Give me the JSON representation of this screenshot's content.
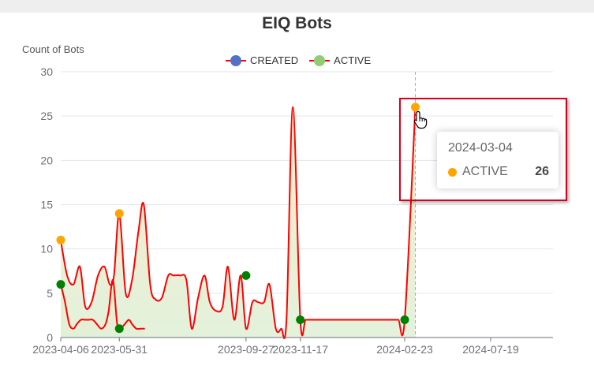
{
  "chart_data": {
    "type": "line",
    "title": "EIQ Bots",
    "ylabel": "Count of Bots",
    "ylim": [
      0,
      30
    ],
    "yticks": [
      "0",
      "5",
      "10",
      "15",
      "20",
      "25",
      "30"
    ],
    "xticks": [
      "2023-04-06",
      "2023-05-31",
      "2023-09-27",
      "2023-11-17",
      "2024-02-23",
      "2024-07-19"
    ],
    "grid": true,
    "legend_position": "top-center",
    "series": [
      {
        "name": "CREATED",
        "color": "#5470c6",
        "line_color": "#ff0000",
        "fill": [
          "#f5eac4",
          "#e0f0d8"
        ],
        "x": [
          "2023-04-06",
          "2023-04-10",
          "2023-04-14",
          "2023-04-18",
          "2023-04-21",
          "2023-04-25",
          "2023-04-29",
          "2023-05-02",
          "2023-05-06",
          "2023-05-10",
          "2023-05-14",
          "2023-05-18",
          "2023-05-21",
          "2023-05-25",
          "2023-05-29",
          "2023-06-01",
          "2023-06-05",
          "2023-06-09",
          "2023-06-12",
          "2023-06-16",
          "2023-06-20",
          "2023-06-24"
        ],
        "values": [
          6,
          4,
          1.5,
          1,
          1.5,
          2,
          2,
          2,
          2,
          1.5,
          1,
          1.5,
          3,
          6.5,
          1.5,
          1,
          1.5,
          2,
          1.5,
          1,
          1,
          1
        ]
      },
      {
        "name": "ACTIVE",
        "color": "#91cc75",
        "line_color": "#ff0000",
        "fill": [
          "#f5eac4",
          "#e0f0d8"
        ],
        "x": [
          "2023-04-06",
          "2023-04-12",
          "2023-04-18",
          "2023-04-24",
          "2023-04-29",
          "2023-05-05",
          "2023-05-11",
          "2023-05-17",
          "2023-05-22",
          "2023-05-26",
          "2023-05-31",
          "2023-06-06",
          "2023-06-12",
          "2023-06-18",
          "2023-06-23",
          "2023-06-29",
          "2023-07-04",
          "2023-07-10",
          "2023-07-16",
          "2023-07-21",
          "2023-07-27",
          "2023-08-02",
          "2023-08-07",
          "2023-08-13",
          "2023-08-19",
          "2023-08-24",
          "2023-08-30",
          "2023-09-05",
          "2023-09-10",
          "2023-09-16",
          "2023-09-22",
          "2023-09-27",
          "2023-10-03",
          "2023-10-08",
          "2023-10-14",
          "2023-10-19",
          "2023-10-25",
          "2023-10-30",
          "2023-11-04",
          "2023-11-10",
          "2023-11-17",
          "2023-11-22",
          "2023-11-28",
          "2023-12-03",
          "2023-12-09",
          "2023-12-14",
          "2023-12-20",
          "2023-12-25",
          "2023-12-31",
          "2024-01-06",
          "2024-01-12",
          "2024-01-18",
          "2024-01-24",
          "2024-01-30",
          "2024-02-05",
          "2024-02-11",
          "2024-02-17",
          "2024-02-23",
          "2024-03-04"
        ],
        "values": [
          11,
          7,
          6,
          8,
          3.5,
          4,
          7,
          8,
          6,
          7,
          14,
          5,
          6.5,
          12,
          15,
          6,
          4.3,
          4.5,
          7,
          7,
          7,
          6.5,
          1,
          4.5,
          7,
          4,
          3,
          3.5,
          8,
          2,
          7,
          1,
          4,
          4,
          4,
          6,
          1,
          1,
          2,
          26,
          2,
          2,
          2,
          2,
          2,
          2,
          2,
          2,
          2,
          2,
          2,
          2,
          2,
          2,
          2,
          2,
          2,
          2,
          26
        ],
        "point_labels": [
          {
            "x": "2023-04-06",
            "y": 11,
            "color": "#ffa500"
          },
          {
            "x": "2023-05-31",
            "y": 14,
            "color": "#ffa500"
          },
          {
            "x": "2024-03-04",
            "y": 26,
            "color": "#ffa500"
          }
        ]
      }
    ],
    "markers": [
      {
        "x": "2023-04-06",
        "y": 6,
        "color": "#008000"
      },
      {
        "x": "2023-05-31",
        "y": 1,
        "color": "#008000"
      },
      {
        "x": "2023-09-27",
        "y": 7,
        "color": "#008000"
      },
      {
        "x": "2023-11-17",
        "y": 2,
        "color": "#008000"
      },
      {
        "x": "2024-02-23",
        "y": 2,
        "color": "#008000"
      }
    ],
    "hover_line_x": "2024-03-04"
  },
  "tooltip": {
    "date": "2024-03-04",
    "series": "ACTIVE",
    "value": "26",
    "dot_color": "#ffa500"
  },
  "colors": {
    "highlight_box": "#d9001b",
    "axis": "#6e7079",
    "grid": "#e0e6f1"
  },
  "icons": {
    "cursor": "hand-pointer-icon"
  }
}
